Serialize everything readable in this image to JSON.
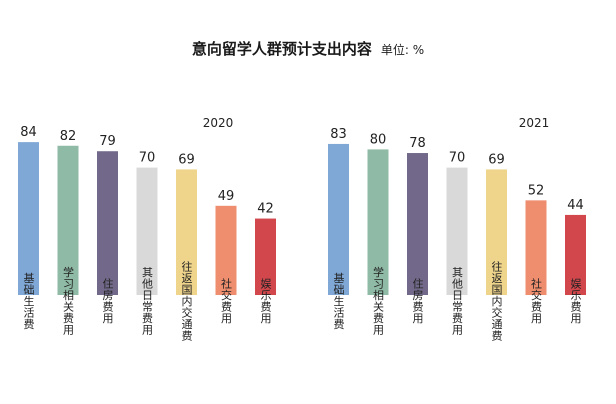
{
  "title": "意向留学人群预计支出内容",
  "unit": "单位: %",
  "colors": [
    "#7fa8d6",
    "#8fbaa6",
    "#72698a",
    "#d9d9d9",
    "#efd48c",
    "#ee8e6e",
    "#d1474c"
  ],
  "chart_data": [
    {
      "type": "bar",
      "title": "2020",
      "categories": [
        "基础生活费",
        "学习相关费用",
        "住房费用",
        "其他日常费用",
        "往返国内交通费",
        "社交费用",
        "娱乐费用"
      ],
      "values": [
        84,
        82,
        79,
        70,
        69,
        49,
        42
      ],
      "ylim": [
        0,
        100
      ],
      "grid": false
    },
    {
      "type": "bar",
      "title": "2021",
      "categories": [
        "基础生活费",
        "学习相关费用",
        "住房费用",
        "其他日常费用",
        "往返国内交通费",
        "社交费用",
        "娱乐费用"
      ],
      "values": [
        83,
        80,
        78,
        70,
        69,
        52,
        44
      ],
      "ylim": [
        0,
        100
      ],
      "grid": false
    }
  ]
}
